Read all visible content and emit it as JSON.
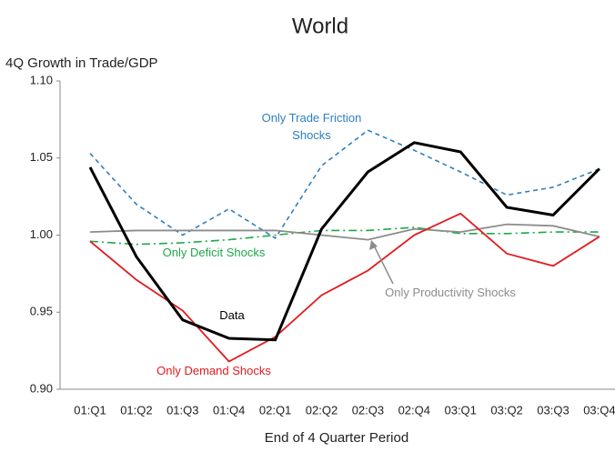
{
  "chart_data": {
    "type": "line",
    "title": "World",
    "y_label": "4Q Growth in Trade/GDP",
    "x_label": "End of 4 Quarter Period",
    "categories": [
      "01:Q1",
      "01:Q2",
      "01:Q3",
      "01:Q4",
      "02:Q1",
      "02:Q2",
      "02:Q3",
      "02:Q4",
      "03:Q1",
      "03:Q2",
      "03:Q3",
      "03:Q4"
    ],
    "ylim": [
      0.9,
      1.1
    ],
    "yticks": [
      {
        "value": 0.9,
        "label": "0.90"
      },
      {
        "value": 0.95,
        "label": "0.95"
      },
      {
        "value": 1.0,
        "label": "1.00"
      },
      {
        "value": 1.05,
        "label": "1.05"
      },
      {
        "value": 1.1,
        "label": "1.10"
      }
    ],
    "grid": false,
    "series": [
      {
        "name": "Only Trade Friction Shocks",
        "color": "#2e7fc0",
        "style": "dashed",
        "values": [
          1.053,
          1.02,
          1.0,
          1.017,
          0.998,
          1.045,
          1.068,
          1.055,
          1.041,
          1.026,
          1.031,
          1.043
        ]
      },
      {
        "name": "Only Deficit Shocks",
        "color": "#1fa84a",
        "style": "dashdot",
        "values": [
          0.996,
          0.994,
          0.995,
          0.997,
          1.0,
          1.003,
          1.003,
          1.005,
          1.001,
          1.001,
          1.002,
          1.002
        ]
      },
      {
        "name": "Only Productivity Shocks",
        "color": "#8c8c8c",
        "style": "solid",
        "values": [
          1.002,
          1.003,
          1.003,
          1.003,
          1.003,
          1.0,
          0.997,
          1.004,
          1.002,
          1.007,
          1.006,
          0.999
        ]
      },
      {
        "name": "Only Demand Shocks",
        "color": "#e31a1c",
        "style": "solid",
        "values": [
          0.996,
          0.971,
          0.951,
          0.918,
          0.934,
          0.961,
          0.977,
          1.0,
          1.014,
          0.988,
          0.98,
          0.999
        ]
      },
      {
        "name": "Data",
        "color": "#000000",
        "style": "bold",
        "values": [
          1.044,
          0.986,
          0.945,
          0.933,
          0.932,
          1.004,
          1.041,
          1.06,
          1.054,
          1.018,
          1.013,
          1.043
        ]
      }
    ]
  }
}
